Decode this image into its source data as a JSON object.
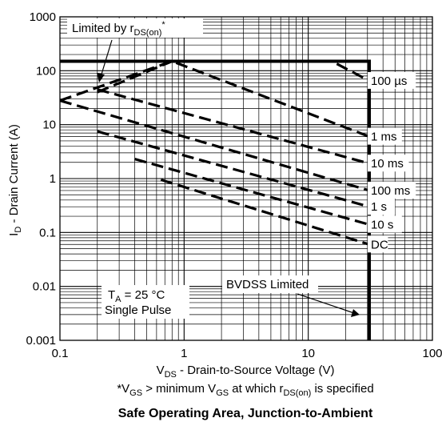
{
  "chart_data": {
    "type": "line",
    "title": "Safe Operating Area, Junction-to-Ambient",
    "xlabel_main": "V",
    "xlabel_sub": "DS",
    "xlabel_rest": " - Drain-to-Source Voltage (V)",
    "ylabel_main": "I",
    "ylabel_sub": "D",
    "ylabel_rest": " - Drain Current (A)",
    "x_scale": "log",
    "y_scale": "log",
    "xlim": [
      0.1,
      100
    ],
    "ylim": [
      0.001,
      1000
    ],
    "x_ticks": [
      "0.1",
      "1",
      "10",
      "100"
    ],
    "y_ticks": [
      "0.001",
      "0.01",
      "0.1",
      "1",
      "10",
      "100",
      "1000"
    ],
    "grid": true,
    "package_limit": {
      "x": [
        0.1,
        31,
        31
      ],
      "y": [
        150,
        150,
        0.001
      ]
    },
    "series": [
      {
        "name": "100 µs",
        "x": [
          0.2,
          0.8,
          15.5,
          31
        ],
        "y": [
          40,
          150,
          150,
          65
        ]
      },
      {
        "name": "1 ms",
        "x": [
          0.1,
          0.8,
          31
        ],
        "y": [
          28,
          150,
          6
        ]
      },
      {
        "name": "10 ms",
        "x": [
          0.2,
          31
        ],
        "y": [
          45,
          1.9
        ]
      },
      {
        "name": "100 ms",
        "x": [
          0.1,
          31
        ],
        "y": [
          28,
          0.6
        ]
      },
      {
        "name": "1 s",
        "x": [
          0.2,
          31
        ],
        "y": [
          7.5,
          0.3
        ]
      },
      {
        "name": "10 s",
        "x": [
          0.4,
          31
        ],
        "y": [
          2.3,
          0.14
        ]
      },
      {
        "name": "DC",
        "x": [
          0.65,
          31
        ],
        "y": [
          0.95,
          0.06
        ]
      }
    ],
    "annotations": {
      "rds_main": "Limited by r",
      "rds_sub": "DS(on)",
      "rds_sup": "*",
      "ta_main": "T",
      "ta_sub": "A",
      "ta_rest": " = 25 °C",
      "single_pulse": "Single Pulse",
      "bvdss": "BVDSS Limited",
      "footnote": {
        "p1": "*V",
        "s1": "GS",
        "p2": " > minimum V",
        "s2": "GS",
        "p3": " at which r",
        "s3": "DS(on)",
        "p4": " is specified"
      }
    }
  }
}
